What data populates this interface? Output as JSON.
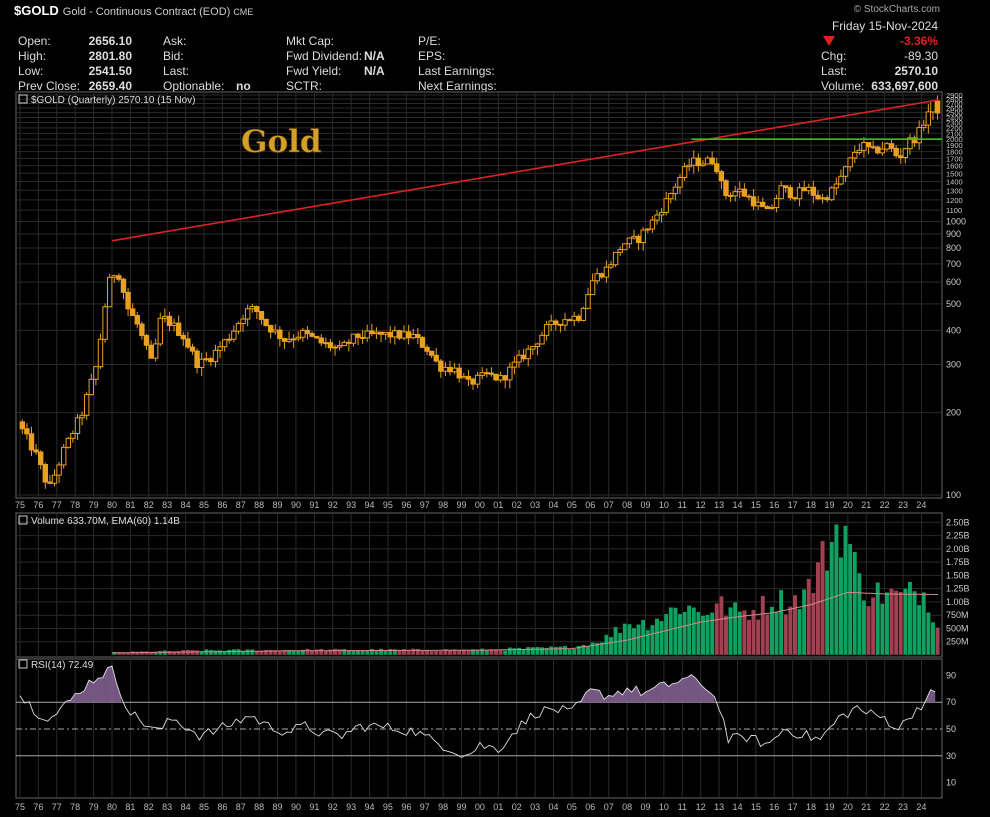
{
  "header": {
    "symbol": "$GOLD",
    "description": "Gold - Continuous Contract (EOD)",
    "exchange": "CME",
    "watermark": "© StockCharts.com",
    "date": "Friday  15-Nov-2024",
    "col1": [
      {
        "label": "Open:",
        "value": "2656.10"
      },
      {
        "label": "High:",
        "value": "2801.80"
      },
      {
        "label": "Low:",
        "value": "2541.50"
      },
      {
        "label": "Prev Close:",
        "value": "2659.40"
      }
    ],
    "col2": [
      {
        "label": "Ask:",
        "value": ""
      },
      {
        "label": "Bid:",
        "value": ""
      },
      {
        "label": "Last:",
        "value": ""
      },
      {
        "label": "Optionable:",
        "value": "no"
      }
    ],
    "col3": [
      {
        "label": "Mkt Cap:",
        "value": ""
      },
      {
        "label": "Fwd Dividend:",
        "value": "N/A"
      },
      {
        "label": "Fwd Yield:",
        "value": "N/A"
      },
      {
        "label": "SCTR:",
        "value": ""
      }
    ],
    "col4": [
      {
        "label": "P/E:",
        "value": ""
      },
      {
        "label": "EPS:",
        "value": ""
      },
      {
        "label": "Last Earnings:",
        "value": ""
      },
      {
        "label": "Next Earnings:",
        "value": ""
      }
    ],
    "pct_change": "-3.36%",
    "chg_label": "Chg:",
    "chg_value": "-89.30",
    "last_label": "Last:",
    "last_value": "2570.10",
    "volume_label": "Volume:",
    "volume_value": "633,697,600",
    "down_color": "#e02020"
  },
  "chart_data": [
    {
      "type": "candlestick",
      "legend": "$GOLD (Quarterly) 2570.10 (15 Nov)",
      "annotation": "Gold",
      "y_scale": "log",
      "ylim": [
        100,
        2900
      ],
      "y_ticks": [
        100,
        200,
        300,
        400,
        500,
        600,
        700,
        800,
        900,
        1000,
        1100,
        1200,
        1300,
        1400,
        1500,
        1600,
        1700,
        1800,
        1900,
        2000,
        2100,
        2200,
        2300,
        2400,
        2500,
        2600,
        2700,
        2800,
        2900
      ],
      "x_ticks": [
        "75",
        "76",
        "77",
        "78",
        "79",
        "80",
        "81",
        "82",
        "83",
        "84",
        "85",
        "86",
        "87",
        "88",
        "89",
        "90",
        "91",
        "92",
        "93",
        "94",
        "95",
        "96",
        "97",
        "98",
        "99",
        "00",
        "01",
        "02",
        "03",
        "04",
        "05",
        "06",
        "07",
        "08",
        "09",
        "10",
        "11",
        "12",
        "13",
        "14",
        "15",
        "16",
        "17",
        "18",
        "19",
        "20",
        "21",
        "22",
        "23",
        "24"
      ],
      "x_range": [
        1975.0,
        2024.9
      ],
      "price_anchors": [
        [
          1975.0,
          185
        ],
        [
          1976.0,
          140
        ],
        [
          1976.7,
          105
        ],
        [
          1977.5,
          145
        ],
        [
          1978.5,
          200
        ],
        [
          1979.3,
          300
        ],
        [
          1979.8,
          520
        ],
        [
          1980.1,
          650
        ],
        [
          1980.5,
          640
        ],
        [
          1981.0,
          480
        ],
        [
          1981.5,
          420
        ],
        [
          1982.3,
          300
        ],
        [
          1982.8,
          450
        ],
        [
          1983.4,
          420
        ],
        [
          1984.0,
          380
        ],
        [
          1984.8,
          300
        ],
        [
          1985.5,
          320
        ],
        [
          1986.5,
          380
        ],
        [
          1987.4,
          470
        ],
        [
          1987.9,
          480
        ],
        [
          1988.5,
          420
        ],
        [
          1989.5,
          370
        ],
        [
          1990.5,
          390
        ],
        [
          1991.5,
          360
        ],
        [
          1992.5,
          340
        ],
        [
          1993.4,
          380
        ],
        [
          1994.5,
          385
        ],
        [
          1995.5,
          385
        ],
        [
          1996.5,
          380
        ],
        [
          1997.3,
          340
        ],
        [
          1997.9,
          295
        ],
        [
          1998.7,
          290
        ],
        [
          1999.5,
          255
        ],
        [
          2000.5,
          275
        ],
        [
          2001.3,
          265
        ],
        [
          2002.3,
          315
        ],
        [
          2003.0,
          350
        ],
        [
          2003.8,
          410
        ],
        [
          2004.7,
          440
        ],
        [
          2005.5,
          450
        ],
        [
          2006.3,
          620
        ],
        [
          2007.0,
          670
        ],
        [
          2007.9,
          830
        ],
        [
          2008.7,
          860
        ],
        [
          2009.5,
          1000
        ],
        [
          2010.3,
          1200
        ],
        [
          2011.0,
          1450
        ],
        [
          2011.6,
          1650
        ],
        [
          2012.3,
          1650
        ],
        [
          2012.9,
          1680
        ],
        [
          2013.4,
          1250
        ],
        [
          2014.2,
          1300
        ],
        [
          2014.9,
          1200
        ],
        [
          2015.8,
          1070
        ],
        [
          2016.5,
          1320
        ],
        [
          2017.2,
          1250
        ],
        [
          2017.9,
          1320
        ],
        [
          2018.7,
          1200
        ],
        [
          2019.3,
          1300
        ],
        [
          2019.9,
          1500
        ],
        [
          2020.5,
          1800
        ],
        [
          2020.9,
          1900
        ],
        [
          2021.5,
          1800
        ],
        [
          2022.3,
          1900
        ],
        [
          2022.9,
          1700
        ],
        [
          2023.4,
          1950
        ],
        [
          2023.9,
          2050
        ],
        [
          2024.3,
          2350
        ],
        [
          2024.7,
          2700
        ],
        [
          2024.9,
          2570
        ]
      ],
      "resistance_line": {
        "x": [
          1980.0,
          2024.9
        ],
        "y": [
          850,
          2780
        ],
        "color": "#dd2222"
      },
      "support_line": {
        "x": [
          2011.5,
          2024.9
        ],
        "y": [
          2000,
          2000
        ],
        "color": "#22cc22"
      },
      "candle_color": "#e8a020"
    },
    {
      "type": "bar",
      "legend": "Volume 633.70M, EMA(60) 1.14B",
      "y_ticks": [
        "250M",
        "500M",
        "750M",
        "1.00B",
        "1.25B",
        "1.50B",
        "1.75B",
        "2.00B",
        "2.25B",
        "2.50B"
      ],
      "ylim": [
        0,
        2.6
      ],
      "unit": "B",
      "volume_anchors": [
        [
          1980.0,
          0.05
        ],
        [
          1985.0,
          0.09
        ],
        [
          1990.0,
          0.1
        ],
        [
          1995.0,
          0.1
        ],
        [
          2000.0,
          0.1
        ],
        [
          2003.0,
          0.13
        ],
        [
          2005.0,
          0.15
        ],
        [
          2006.0,
          0.22
        ],
        [
          2007.0,
          0.35
        ],
        [
          2008.0,
          0.62
        ],
        [
          2009.0,
          0.6
        ],
        [
          2010.0,
          0.75
        ],
        [
          2011.0,
          0.95
        ],
        [
          2012.0,
          0.8
        ],
        [
          2013.0,
          0.95
        ],
        [
          2014.0,
          0.8
        ],
        [
          2015.0,
          0.85
        ],
        [
          2016.0,
          1.05
        ],
        [
          2017.0,
          1.0
        ],
        [
          2018.0,
          1.3
        ],
        [
          2018.5,
          1.7
        ],
        [
          2019.5,
          2.45
        ],
        [
          2020.0,
          2.3
        ],
        [
          2020.5,
          1.45
        ],
        [
          2021.0,
          1.2
        ],
        [
          2022.0,
          1.15
        ],
        [
          2023.0,
          1.1
        ],
        [
          2024.0,
          1.25
        ],
        [
          2024.9,
          0.63
        ]
      ],
      "ema_anchors": [
        [
          1980.0,
          0.04
        ],
        [
          1990.0,
          0.08
        ],
        [
          2000.0,
          0.09
        ],
        [
          2005.0,
          0.12
        ],
        [
          2008.0,
          0.28
        ],
        [
          2010.0,
          0.45
        ],
        [
          2012.0,
          0.62
        ],
        [
          2014.0,
          0.72
        ],
        [
          2016.0,
          0.8
        ],
        [
          2018.0,
          0.95
        ],
        [
          2020.0,
          1.18
        ],
        [
          2022.0,
          1.15
        ],
        [
          2024.9,
          1.14
        ]
      ],
      "up_color": "#10a060",
      "down_color": "#a04050",
      "ema_color": "#d08a8a"
    },
    {
      "type": "line",
      "legend": "RSI(14) 72.49",
      "ylim": [
        0,
        100
      ],
      "y_ticks": [
        10,
        30,
        50,
        70,
        90
      ],
      "ref_lines": [
        70,
        50,
        30
      ],
      "overbought_fill": "#806090",
      "rsi_anchors": [
        [
          1975.0,
          75
        ],
        [
          1976.0,
          62
        ],
        [
          1976.7,
          58
        ],
        [
          1977.5,
          68
        ],
        [
          1978.5,
          82
        ],
        [
          1979.3,
          90
        ],
        [
          1980.0,
          95
        ],
        [
          1980.4,
          80
        ],
        [
          1981.0,
          62
        ],
        [
          1981.7,
          55
        ],
        [
          1982.5,
          48
        ],
        [
          1983.3,
          58
        ],
        [
          1984.0,
          52
        ],
        [
          1984.8,
          45
        ],
        [
          1985.5,
          48
        ],
        [
          1986.5,
          54
        ],
        [
          1987.5,
          60
        ],
        [
          1988.5,
          52
        ],
        [
          1989.5,
          48
        ],
        [
          1990.5,
          52
        ],
        [
          1991.5,
          46
        ],
        [
          1992.5,
          45
        ],
        [
          1993.5,
          52
        ],
        [
          1994.5,
          52
        ],
        [
          1995.5,
          50
        ],
        [
          1996.5,
          48
        ],
        [
          1997.3,
          42
        ],
        [
          1998.0,
          38
        ],
        [
          1999.3,
          30
        ],
        [
          2000.0,
          38
        ],
        [
          2001.0,
          35
        ],
        [
          2002.0,
          50
        ],
        [
          2003.0,
          62
        ],
        [
          2004.0,
          65
        ],
        [
          2005.0,
          62
        ],
        [
          2006.0,
          78
        ],
        [
          2007.0,
          75
        ],
        [
          2008.0,
          80
        ],
        [
          2009.0,
          77
        ],
        [
          2010.0,
          82
        ],
        [
          2011.3,
          88
        ],
        [
          2012.3,
          82
        ],
        [
          2013.0,
          68
        ],
        [
          2013.5,
          42
        ],
        [
          2014.5,
          44
        ],
        [
          2015.7,
          38
        ],
        [
          2016.5,
          50
        ],
        [
          2017.5,
          46
        ],
        [
          2018.5,
          42
        ],
        [
          2019.5,
          58
        ],
        [
          2020.5,
          66
        ],
        [
          2021.0,
          62
        ],
        [
          2022.0,
          58
        ],
        [
          2022.8,
          50
        ],
        [
          2023.5,
          62
        ],
        [
          2024.3,
          72
        ],
        [
          2024.6,
          78
        ],
        [
          2024.9,
          72
        ]
      ]
    }
  ]
}
